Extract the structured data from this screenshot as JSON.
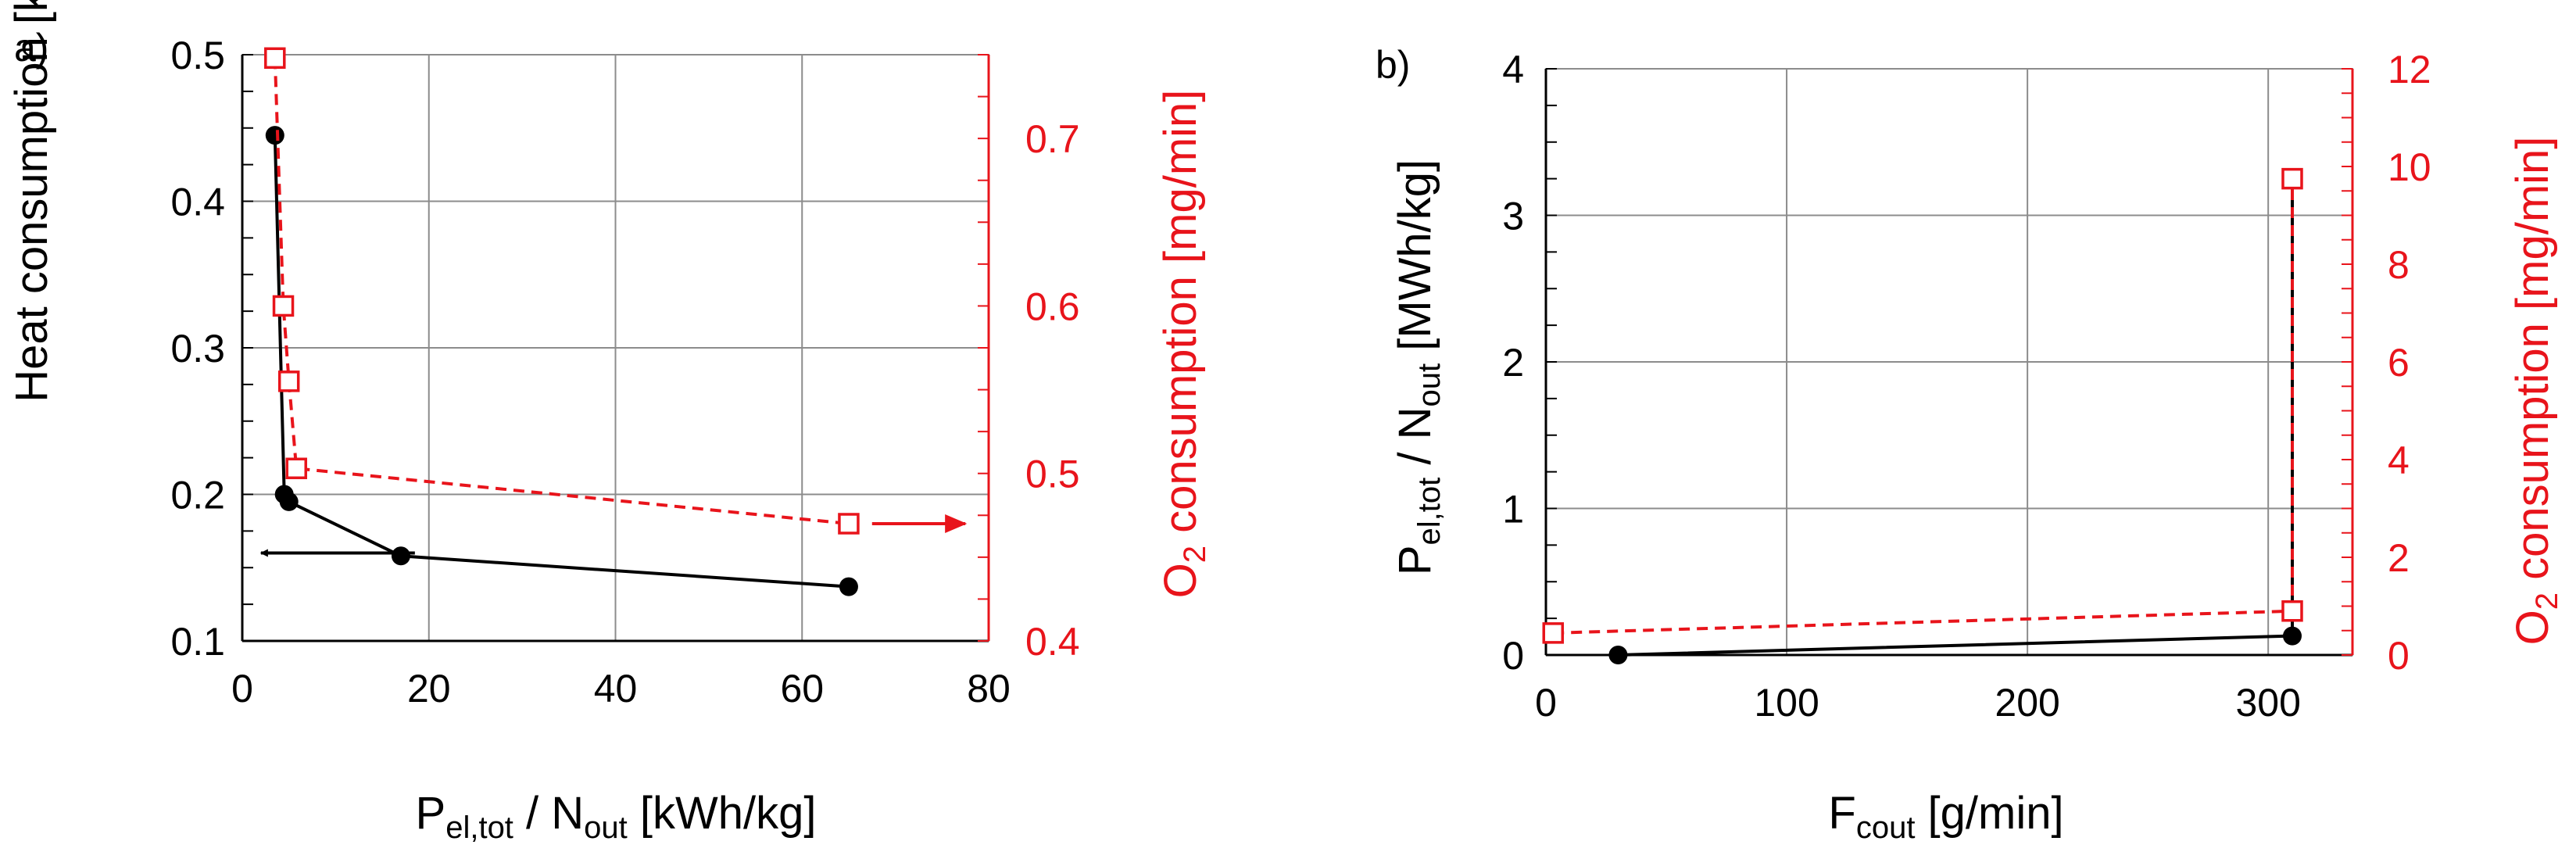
{
  "chart_data": [
    {
      "panel_label": "a)",
      "type": "line",
      "xlabel": {
        "main": "P",
        "sub": "el,tot",
        "mid": " / N",
        "sub2": "out",
        "tail": " [kWh/kg]"
      },
      "ylabel": "Heat consumption [kW]",
      "y2label": {
        "main": "O",
        "sub": "2",
        "tail": " consumption [mg/min]"
      },
      "xlim": [
        0,
        80
      ],
      "ylim": [
        0.1,
        0.5
      ],
      "y2lim": [
        0.4,
        0.75
      ],
      "x_ticks": [
        "0",
        "20",
        "40",
        "60",
        "80"
      ],
      "y_ticks": [
        "0.1",
        "0.2",
        "0.3",
        "0.4",
        "0.5"
      ],
      "y2_ticks": [
        "0.4",
        "0.5",
        "0.6",
        "0.7"
      ],
      "grid": true,
      "series": [
        {
          "axis": "left",
          "style": "solid",
          "marker": "circle",
          "color": "#000000",
          "points": [
            [
              3.5,
              0.445
            ],
            [
              4.5,
              0.2
            ],
            [
              5.0,
              0.195
            ],
            [
              17.0,
              0.158
            ],
            [
              65.0,
              0.137
            ]
          ]
        },
        {
          "axis": "right",
          "style": "dashed",
          "marker": "square-open",
          "color": "#e8141b",
          "points": [
            [
              3.5,
              0.748
            ],
            [
              4.4,
              0.6
            ],
            [
              5.0,
              0.555
            ],
            [
              5.8,
              0.503
            ],
            [
              65.0,
              0.47
            ]
          ]
        }
      ],
      "arrows": [
        {
          "color": "#000000",
          "from": [
            18.5,
            0.16
          ],
          "to": [
            2.0,
            0.16
          ]
        },
        {
          "color": "#e8141b",
          "from": [
            67.5,
            0.47
          ],
          "to": [
            77.5,
            0.47
          ]
        }
      ]
    },
    {
      "panel_label": "b)",
      "type": "line",
      "xlabel": {
        "main": "F",
        "sub": "cout",
        "tail": " [g/min]"
      },
      "ylabel": {
        "main": "P",
        "sub": "el,tot",
        "mid": " / N",
        "sub2": "out",
        "tail": " [MWh/kg]"
      },
      "y2label": {
        "main": "O",
        "sub": "2",
        "tail": " consumption [mg/min]"
      },
      "xlim": [
        0,
        335
      ],
      "ylim": [
        0,
        4
      ],
      "y2lim": [
        0,
        12
      ],
      "x_ticks": [
        {
          "v": 0,
          "t": "0"
        },
        {
          "v": 100,
          "t": "100"
        },
        {
          "v": 200,
          "t": "200"
        },
        {
          "v": 300,
          "t": "300"
        }
      ],
      "y_ticks": [
        "0",
        "1",
        "2",
        "3",
        "4"
      ],
      "y2_ticks": [
        "0",
        "2",
        "4",
        "6",
        "8",
        "10",
        "12"
      ],
      "grid": true,
      "series": [
        {
          "axis": "left",
          "style": "solid",
          "marker": "circle",
          "color": "#000000",
          "points": [
            [
              30,
              0.0
            ],
            [
              310,
              0.13
            ],
            [
              310,
              3.25
            ]
          ]
        },
        {
          "axis": "right",
          "style": "dashed",
          "marker": "square-open",
          "color": "#e8141b",
          "points": [
            [
              3,
              0.45
            ],
            [
              310,
              0.9
            ],
            [
              310,
              9.75
            ]
          ]
        }
      ]
    }
  ]
}
